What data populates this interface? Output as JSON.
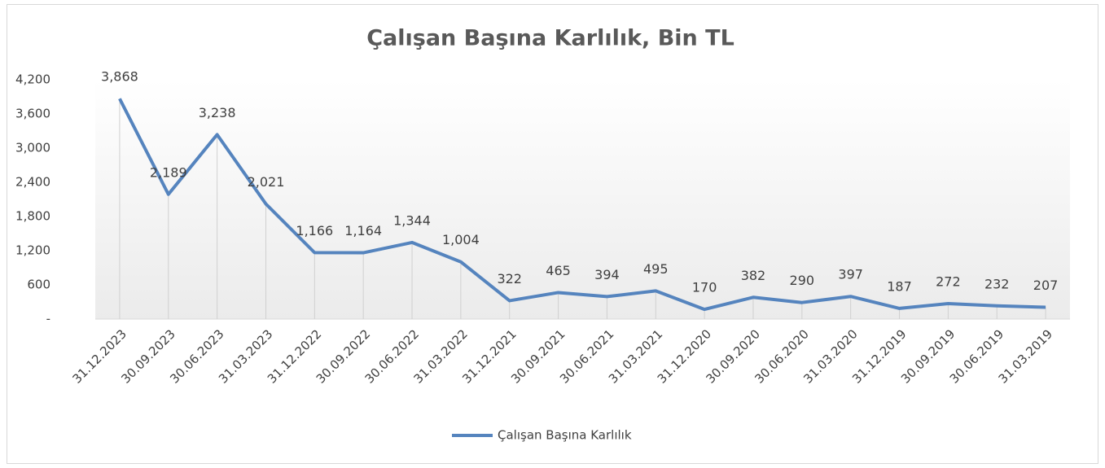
{
  "chart_data": {
    "type": "line",
    "title": "Çalışan Başına Karlılık, Bin TL",
    "categories": [
      "31.12.2023",
      "30.09.2023",
      "30.06.2023",
      "31.03.2023",
      "31.12.2022",
      "30.09.2022",
      "30.06.2022",
      "31.03.2022",
      "31.12.2021",
      "30.09.2021",
      "30.06.2021",
      "31.03.2021",
      "31.12.2020",
      "30.09.2020",
      "30.06.2020",
      "31.03.2020",
      "31.12.2019",
      "30.09.2019",
      "30.06.2019",
      "31.03.2019"
    ],
    "series": [
      {
        "name": "Çalışan Başına Karlılık",
        "color": "#5584be",
        "values": [
          3868,
          2189,
          3238,
          2021,
          1166,
          1164,
          1344,
          1004,
          322,
          465,
          394,
          495,
          170,
          382,
          290,
          397,
          187,
          272,
          232,
          207
        ],
        "value_labels": [
          "3,868",
          "2,189",
          "3,238",
          "2,021",
          "1,166",
          "1,164",
          "1,344",
          "1,004",
          "322",
          "465",
          "394",
          "495",
          "170",
          "382",
          "290",
          "397",
          "187",
          "272",
          "232",
          "207"
        ]
      }
    ],
    "ylim": [
      0,
      4200
    ],
    "yticks": [
      {
        "value": 0,
        "label": "-"
      },
      600,
      {
        "value": 1200,
        "label": "1,200"
      },
      {
        "value": 1800,
        "label": "1,800"
      },
      {
        "value": 2400,
        "label": "2,400"
      },
      {
        "value": 3000,
        "label": "3,000"
      },
      {
        "value": 3600,
        "label": "3,600"
      },
      {
        "value": 4200,
        "label": "4,200"
      }
    ],
    "legend": "bottom"
  }
}
